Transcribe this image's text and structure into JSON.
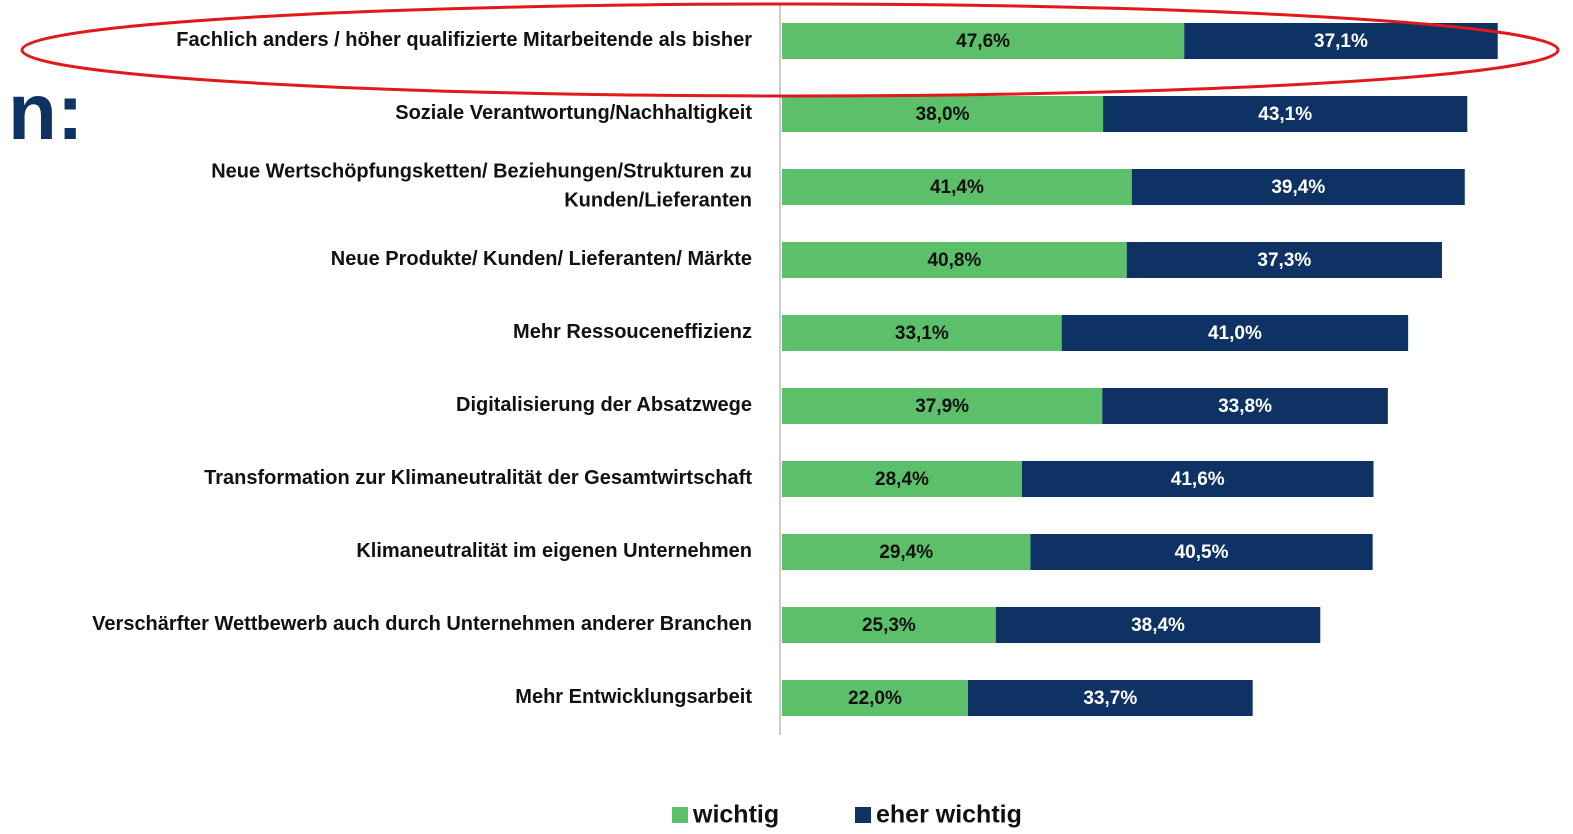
{
  "logo_text": "n:",
  "chart_data": {
    "type": "stacked_bar_horizontal",
    "categories": [
      "Fachlich anders / höher qualifizierte Mitarbeitende als bisher",
      "Soziale Verantwortung/Nachhaltigkeit",
      "Neue Wertschöpfungsketten/ Beziehungen/Strukturen zu\nKunden/Lieferanten",
      "Neue Produkte/ Kunden/ Lieferanten/ Märkte",
      "Mehr Ressouceneffizienz",
      "Digitalisierung der Absatzwege",
      "Transformation zur Klimaneutralität der Gesamtwirtschaft",
      "Klimaneutralität im eigenen Unternehmen",
      "Verschärfter Wettbewerb auch durch Unternehmen anderer Branchen",
      "Mehr Entwicklungsarbeit"
    ],
    "series": [
      {
        "name": "wichtig",
        "color": "#5cbf6a",
        "values": [
          47.6,
          38.0,
          41.4,
          40.8,
          33.1,
          37.9,
          28.4,
          29.4,
          25.3,
          22.0
        ],
        "value_labels": [
          "47,6%",
          "38,0%",
          "41,4%",
          "40,8%",
          "33,1%",
          "37,9%",
          "28,4%",
          "29,4%",
          "25,3%",
          "22,0%"
        ]
      },
      {
        "name": "eher wichtig",
        "color": "#0d3263",
        "values": [
          37.1,
          43.1,
          39.4,
          37.3,
          41.0,
          33.8,
          41.6,
          40.5,
          38.4,
          33.7
        ],
        "value_labels": [
          "37,1%",
          "43,1%",
          "39,4%",
          "37,3%",
          "41,0%",
          "33,8%",
          "41,6%",
          "40,5%",
          "38,4%",
          "33,7%"
        ]
      }
    ],
    "legend": "bottom"
  }
}
